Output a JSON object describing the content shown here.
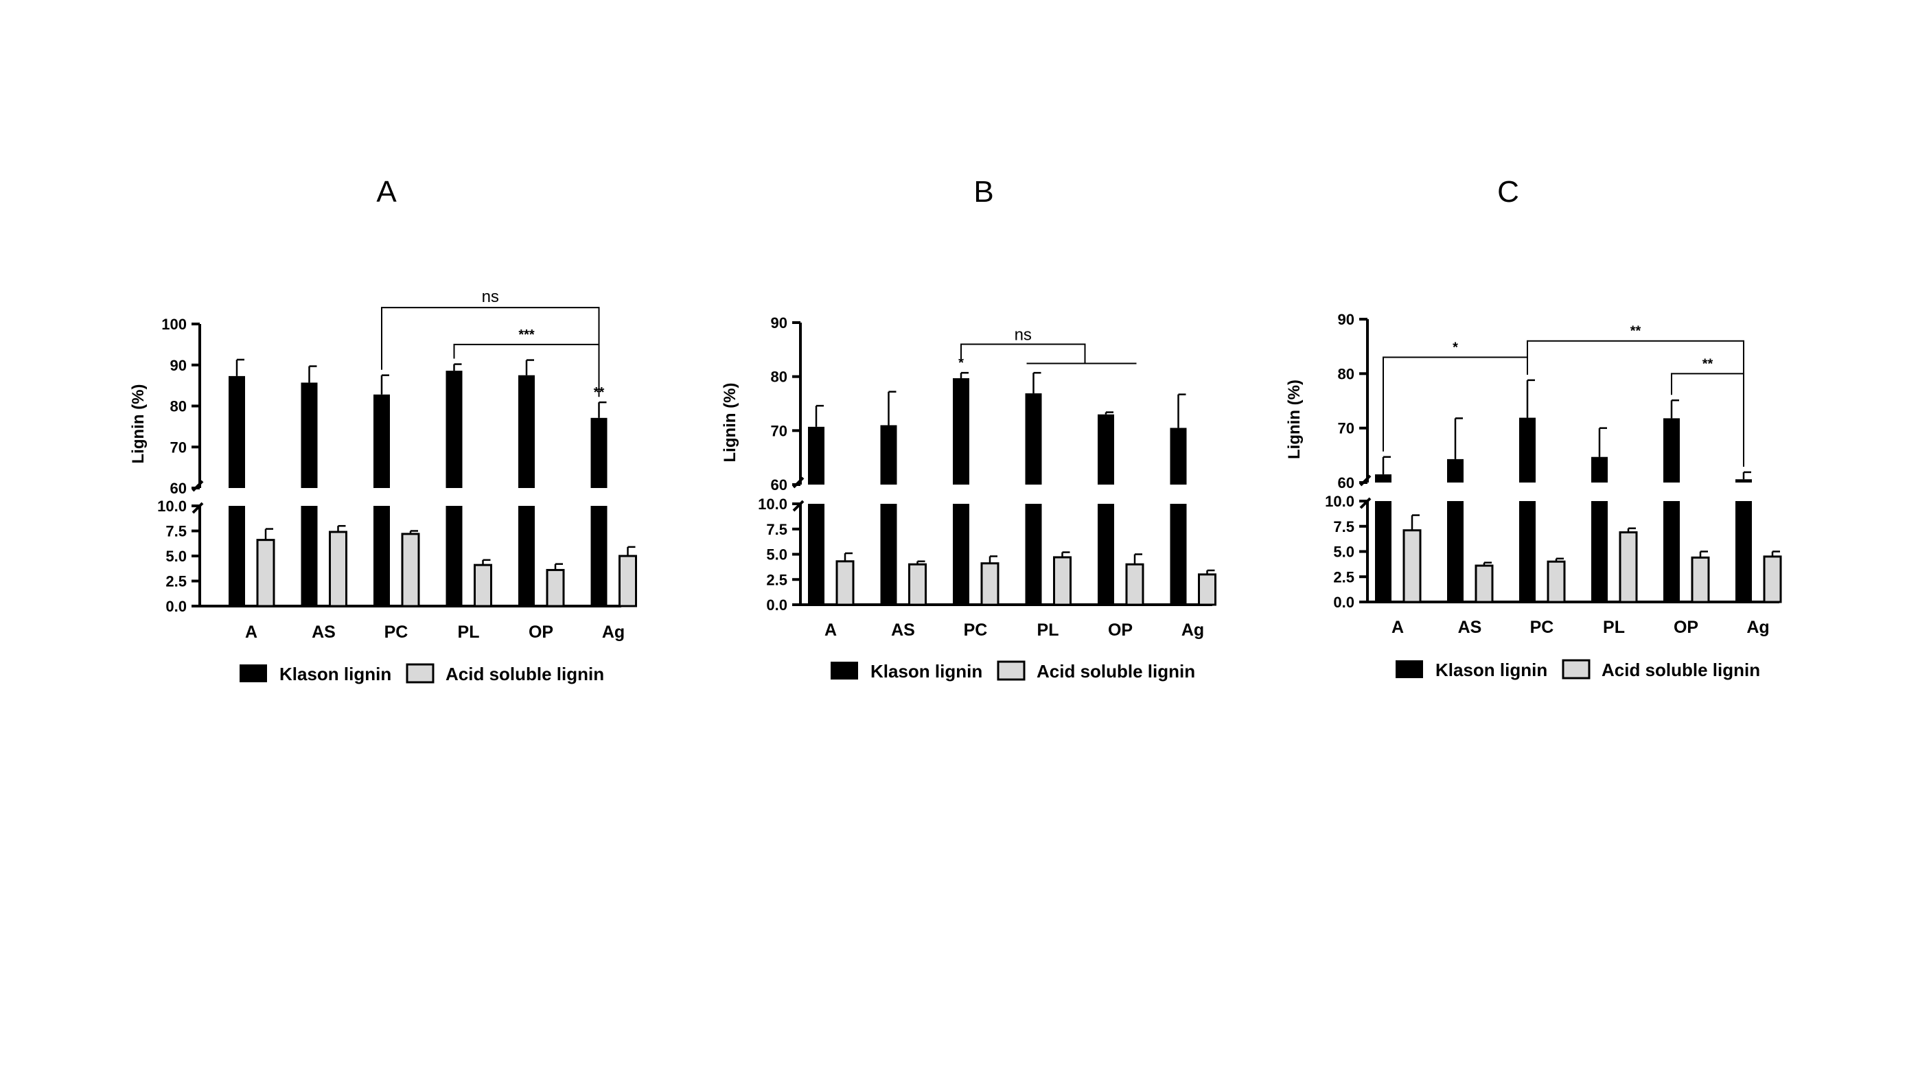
{
  "legend": {
    "klason_label": "Klason lignin",
    "acid_label": "Acid soluble lignin"
  },
  "colors": {
    "klason": "#000000",
    "acid": "#d9d9d9",
    "axis": "#000000"
  },
  "chart_data": [
    {
      "panel": "A",
      "type": "bar",
      "ylabel": "Lignin (%)",
      "categories": [
        "A",
        "AS",
        "PC",
        "PL",
        "OP",
        "Ag"
      ],
      "upper_range": [
        60,
        100
      ],
      "upper_ticks": [
        "100",
        "90",
        "80",
        "70",
        "60"
      ],
      "lower_range": [
        0,
        10
      ],
      "lower_ticks": [
        "10.0",
        "7.5",
        "5.0",
        "2.5",
        "0.0"
      ],
      "series": [
        {
          "name": "Klason lignin",
          "values": [
            87.3,
            85.7,
            82.8,
            88.6,
            87.5,
            77.1
          ],
          "errors": [
            4.0,
            4.0,
            4.7,
            1.6,
            3.7,
            3.8
          ]
        },
        {
          "name": "Acid soluble lignin",
          "values": [
            6.6,
            7.4,
            7.2,
            4.1,
            3.6,
            5.0
          ],
          "errors": [
            1.1,
            0.6,
            0.3,
            0.5,
            0.6,
            0.9
          ]
        }
      ],
      "annotations": [
        {
          "text": "ns",
          "from": "PC",
          "to": "Ag",
          "level": 104
        },
        {
          "text": "***",
          "from": "PL",
          "to": "Ag",
          "level": 95
        },
        {
          "text": "**",
          "on": "Ag"
        }
      ]
    },
    {
      "panel": "B",
      "type": "bar",
      "ylabel": "Lignin (%)",
      "categories": [
        "A",
        "AS",
        "PC",
        "PL",
        "OP",
        "Ag"
      ],
      "upper_range": [
        60,
        90
      ],
      "upper_ticks": [
        "90",
        "80",
        "70",
        "60"
      ],
      "lower_range": [
        0,
        10
      ],
      "lower_ticks": [
        "10.0",
        "7.5",
        "5.0",
        "2.5",
        "0.0"
      ],
      "series": [
        {
          "name": "Klason lignin",
          "values": [
            70.7,
            71.0,
            79.7,
            76.9,
            73.0,
            70.5
          ],
          "errors": [
            3.9,
            6.2,
            1.0,
            3.8,
            0.4,
            6.2
          ]
        },
        {
          "name": "Acid soluble lignin",
          "values": [
            4.3,
            4.0,
            4.1,
            4.7,
            4.0,
            3.0
          ],
          "errors": [
            0.8,
            0.3,
            0.7,
            0.5,
            1.0,
            0.4
          ]
        }
      ],
      "annotations": [
        {
          "text": "ns",
          "from": "PC",
          "to": "PL",
          "level": 86
        },
        {
          "text": "*",
          "on": "PC"
        }
      ]
    },
    {
      "panel": "C",
      "type": "bar",
      "ylabel": "Lignin (%)",
      "categories": [
        "A",
        "AS",
        "PC",
        "PL",
        "OP",
        "Ag"
      ],
      "upper_range": [
        60,
        90
      ],
      "upper_ticks": [
        "90",
        "80",
        "70",
        "60"
      ],
      "lower_range": [
        0,
        10
      ],
      "lower_ticks": [
        "10.0",
        "7.5",
        "5.0",
        "2.5",
        "0.0"
      ],
      "series": [
        {
          "name": "Klason lignin",
          "values": [
            61.5,
            64.3,
            71.9,
            64.7,
            71.8,
            60.6
          ],
          "errors": [
            3.2,
            7.5,
            6.9,
            5.3,
            3.3,
            1.3
          ]
        },
        {
          "name": "Acid soluble lignin",
          "values": [
            7.1,
            3.6,
            4.0,
            6.9,
            4.4,
            4.5
          ],
          "errors": [
            1.5,
            0.3,
            0.3,
            0.4,
            0.6,
            0.5
          ]
        }
      ],
      "annotations": [
        {
          "text": "*",
          "from": "A",
          "to": "PC",
          "level": 83
        },
        {
          "text": "**",
          "from": "PC",
          "to": "Ag",
          "level": 86
        },
        {
          "text": "**",
          "from": "OP",
          "to": "Ag",
          "level": 80
        }
      ]
    }
  ]
}
